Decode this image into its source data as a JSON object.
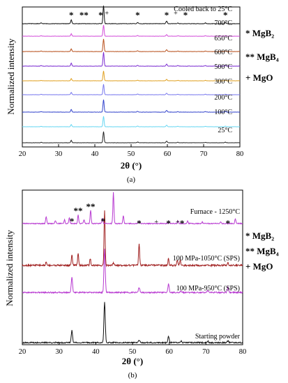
{
  "chart_data": [
    {
      "panel": "(a)",
      "type": "line",
      "xlabel": "2θ (°)",
      "ylabel": "Normalized intensity",
      "xlim": [
        20,
        80
      ],
      "xticks": [
        20,
        30,
        40,
        50,
        60,
        70,
        80
      ],
      "caption": "(a)",
      "series": [
        {
          "name": "25°C",
          "color": "#222222",
          "label": "25°C"
        },
        {
          "name": "100°C",
          "color": "#66d6f2",
          "label": "100°C"
        },
        {
          "name": "200°C",
          "color": "#3344cc",
          "label": "200°C"
        },
        {
          "name": "300°C",
          "color": "#7777ee",
          "label": "300°C"
        },
        {
          "name": "500°C",
          "color": "#e0a020",
          "label": "500°C"
        },
        {
          "name": "600°C",
          "color": "#7a2bd1",
          "label": "600°C"
        },
        {
          "name": "650°C",
          "color": "#b8501c",
          "label": "650°C"
        },
        {
          "name": "700°C",
          "color": "#d24bd9",
          "label": "700°C"
        },
        {
          "name": "Cooled back to 25°C",
          "color": "#111111",
          "label": "Cooled back to 25°C"
        }
      ],
      "peaks": [
        {
          "x": 25.2,
          "h": 0.04,
          "w": 0.25
        },
        {
          "x": 33.5,
          "h": 0.22,
          "w": 0.22
        },
        {
          "x": 42.4,
          "h": 1.0,
          "w": 0.22
        },
        {
          "x": 51.8,
          "h": 0.06,
          "w": 0.25
        },
        {
          "x": 59.8,
          "h": 0.14,
          "w": 0.25
        },
        {
          "x": 62.9,
          "h": 0.04,
          "w": 0.25
        },
        {
          "x": 70.5,
          "h": 0.04,
          "w": 0.25
        },
        {
          "x": 76.0,
          "h": 0.05,
          "w": 0.25
        }
      ],
      "markers": [
        {
          "x": 33.5,
          "symbol": "*"
        },
        {
          "x": 37.0,
          "symbol": "**"
        },
        {
          "x": 41.6,
          "symbol": "*"
        },
        {
          "x": 43.3,
          "symbol": "+"
        },
        {
          "x": 51.8,
          "symbol": "*"
        },
        {
          "x": 59.8,
          "symbol": "*"
        },
        {
          "x": 62.3,
          "symbol": "+"
        },
        {
          "x": 65.0,
          "symbol": "*"
        },
        {
          "x": 76.0,
          "symbol": "*"
        }
      ],
      "legend": [
        {
          "symbol": "*",
          "label": "MgB₂"
        },
        {
          "symbol": "**",
          "label": "MgB₄"
        },
        {
          "symbol": "+",
          "label": "MgO"
        }
      ]
    },
    {
      "panel": "(b)",
      "type": "line",
      "xlabel": "2θ (°)",
      "ylabel": "Normalized intensity",
      "xlim": [
        20,
        80
      ],
      "xticks": [
        20,
        30,
        40,
        50,
        60,
        70,
        80
      ],
      "caption": "(b)",
      "series": [
        {
          "name": "Starting powder",
          "color": "#111111",
          "label": "Starting powder",
          "peaks": [
            {
              "x": 33.5,
              "h": 0.3
            },
            {
              "x": 42.4,
              "h": 1.0
            },
            {
              "x": 51.8,
              "h": 0.06
            },
            {
              "x": 59.8,
              "h": 0.16
            },
            {
              "x": 63.2,
              "h": 0.04
            },
            {
              "x": 70.5,
              "h": 0.04
            },
            {
              "x": 76.0,
              "h": 0.05
            }
          ]
        },
        {
          "name": "100 MPa-950°C (SPS)",
          "color": "#b83ad1",
          "label": "100 MPa-950°C (SPS)",
          "peaks": [
            {
              "x": 33.5,
              "h": 0.35
            },
            {
              "x": 42.4,
              "h": 1.0
            },
            {
              "x": 51.8,
              "h": 0.12
            },
            {
              "x": 59.8,
              "h": 0.2
            },
            {
              "x": 63.2,
              "h": 0.04
            },
            {
              "x": 70.5,
              "h": 0.05
            },
            {
              "x": 76.0,
              "h": 0.12
            }
          ]
        },
        {
          "name": "100 MPa-1050°C (SPS)",
          "color": "#a02020",
          "label": "100 MPa-1050°C (SPS)",
          "peaks": [
            {
              "x": 26.5,
              "h": 0.06
            },
            {
              "x": 33.5,
              "h": 0.2
            },
            {
              "x": 35.2,
              "h": 0.22
            },
            {
              "x": 38.5,
              "h": 0.12
            },
            {
              "x": 42.4,
              "h": 1.0
            },
            {
              "x": 44.8,
              "h": 0.05
            },
            {
              "x": 51.8,
              "h": 0.4
            },
            {
              "x": 59.8,
              "h": 0.12
            },
            {
              "x": 62.2,
              "h": 0.1
            },
            {
              "x": 63.0,
              "h": 0.1
            },
            {
              "x": 76.0,
              "h": 0.05
            }
          ]
        },
        {
          "name": "Furnace - 1250°C",
          "color": "#b83ad1",
          "label": "Furnace - 1250°C",
          "peaks": [
            {
              "x": 26.5,
              "h": 0.22
            },
            {
              "x": 29.0,
              "h": 0.1
            },
            {
              "x": 31.5,
              "h": 0.12
            },
            {
              "x": 32.8,
              "h": 0.18
            },
            {
              "x": 35.2,
              "h": 0.28
            },
            {
              "x": 36.8,
              "h": 0.12
            },
            {
              "x": 38.6,
              "h": 0.42
            },
            {
              "x": 41.8,
              "h": 0.16
            },
            {
              "x": 44.8,
              "h": 1.0
            },
            {
              "x": 47.5,
              "h": 0.26
            },
            {
              "x": 51.8,
              "h": 0.08
            },
            {
              "x": 60.0,
              "h": 0.06
            },
            {
              "x": 62.4,
              "h": 0.1
            },
            {
              "x": 65.0,
              "h": 0.08
            },
            {
              "x": 69.0,
              "h": 0.05
            },
            {
              "x": 74.0,
              "h": 0.05
            },
            {
              "x": 78.0,
              "h": 0.14
            }
          ]
        }
      ],
      "markers": [
        {
          "x": 33.5,
          "symbol": "*"
        },
        {
          "x": 35.2,
          "symbol": "**"
        },
        {
          "x": 38.6,
          "symbol": "**"
        },
        {
          "x": 42.0,
          "symbol": "*"
        },
        {
          "x": 51.8,
          "symbol": "*"
        },
        {
          "x": 56.5,
          "symbol": "+"
        },
        {
          "x": 59.8,
          "symbol": "*"
        },
        {
          "x": 62.3,
          "symbol": "+"
        },
        {
          "x": 63.5,
          "symbol": "*"
        },
        {
          "x": 76.0,
          "symbol": "*"
        }
      ],
      "legend": [
        {
          "symbol": "*",
          "label": "MgB₂"
        },
        {
          "symbol": "**",
          "label": "MgB₄"
        },
        {
          "symbol": "+",
          "label": "MgO"
        }
      ]
    }
  ]
}
